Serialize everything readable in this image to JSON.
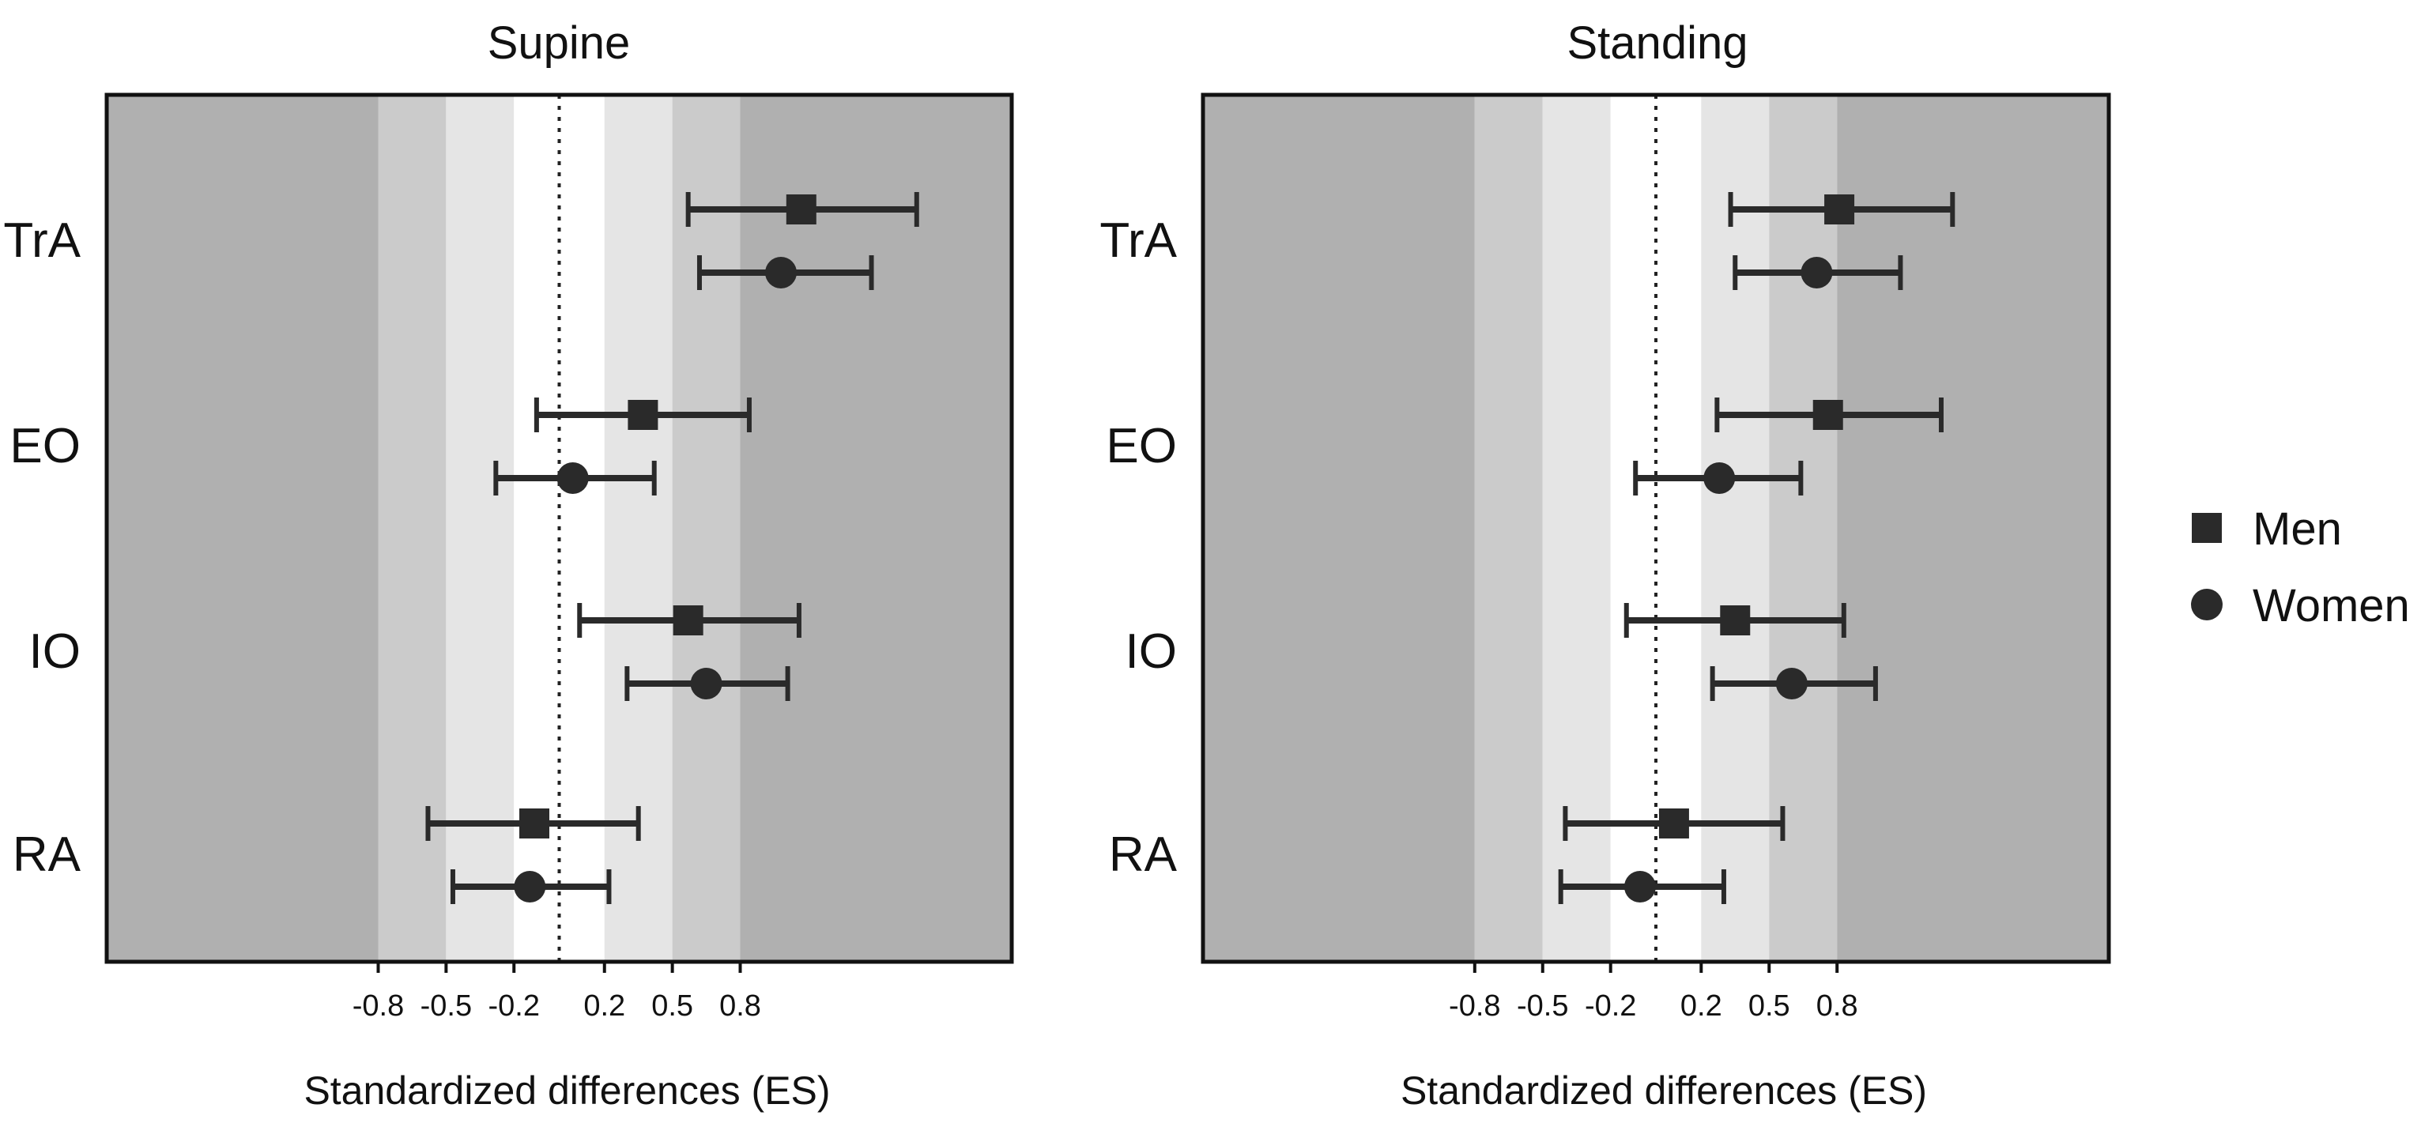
{
  "figure": {
    "legend": {
      "placement": "right"
    }
  },
  "colors": {
    "background": "#ffffff",
    "band_large": "#b0b0b0",
    "band_moderate": "#cbcbcb",
    "band_small": "#e5e5e5",
    "band_trivial": "#ffffff",
    "marker": "#2a2a2a",
    "frame": "#111111"
  },
  "chart_data": [
    {
      "type": "forest",
      "title": "Supine",
      "xlabel": "Standardized differences (ES)",
      "xlim": [
        -2.0,
        2.0
      ],
      "tick_values": [
        -0.8,
        -0.5,
        -0.2,
        0.2,
        0.5,
        0.8
      ],
      "tick_labels": [
        "-0.8",
        "-0.5",
        "-0.2",
        "0.2",
        "0.5",
        "0.8"
      ],
      "reference_line": 0,
      "bands": [
        {
          "from": -2.0,
          "to": -0.8,
          "level": "large"
        },
        {
          "from": -0.8,
          "to": -0.5,
          "level": "moderate"
        },
        {
          "from": -0.5,
          "to": -0.2,
          "level": "small"
        },
        {
          "from": -0.2,
          "to": 0.2,
          "level": "trivial"
        },
        {
          "from": 0.2,
          "to": 0.5,
          "level": "small"
        },
        {
          "from": 0.5,
          "to": 0.8,
          "level": "moderate"
        },
        {
          "from": 0.8,
          "to": 2.0,
          "level": "large"
        }
      ],
      "categories": [
        "TrA",
        "EO",
        "IO",
        "RA"
      ],
      "series": [
        {
          "name": "Men",
          "marker": "square",
          "values": [
            1.07,
            0.37,
            0.57,
            -0.11
          ],
          "lower": [
            0.57,
            -0.1,
            0.09,
            -0.58
          ],
          "upper": [
            1.58,
            0.84,
            1.06,
            0.35
          ]
        },
        {
          "name": "Women",
          "marker": "circle",
          "values": [
            0.98,
            0.06,
            0.65,
            -0.13
          ],
          "lower": [
            0.62,
            -0.28,
            0.3,
            -0.47
          ],
          "upper": [
            1.38,
            0.42,
            1.01,
            0.22
          ]
        }
      ]
    },
    {
      "type": "forest",
      "title": "Standing",
      "xlabel": "Standardized differences (ES)",
      "xlim": [
        -2.0,
        2.0
      ],
      "tick_values": [
        -0.8,
        -0.5,
        -0.2,
        0.2,
        0.5,
        0.8
      ],
      "tick_labels": [
        "-0.8",
        "-0.5",
        "-0.2",
        "0.2",
        "0.5",
        "0.8"
      ],
      "reference_line": 0,
      "bands": [
        {
          "from": -2.0,
          "to": -0.8,
          "level": "large"
        },
        {
          "from": -0.8,
          "to": -0.5,
          "level": "moderate"
        },
        {
          "from": -0.5,
          "to": -0.2,
          "level": "small"
        },
        {
          "from": -0.2,
          "to": 0.2,
          "level": "trivial"
        },
        {
          "from": 0.2,
          "to": 0.5,
          "level": "small"
        },
        {
          "from": 0.5,
          "to": 0.8,
          "level": "moderate"
        },
        {
          "from": 0.8,
          "to": 2.0,
          "level": "large"
        }
      ],
      "categories": [
        "TrA",
        "EO",
        "IO",
        "RA"
      ],
      "series": [
        {
          "name": "Men",
          "marker": "square",
          "values": [
            0.81,
            0.76,
            0.35,
            0.08
          ],
          "lower": [
            0.33,
            0.27,
            -0.13,
            -0.4
          ],
          "upper": [
            1.31,
            1.26,
            0.83,
            0.56
          ]
        },
        {
          "name": "Women",
          "marker": "circle",
          "values": [
            0.71,
            0.28,
            0.6,
            -0.07
          ],
          "lower": [
            0.35,
            -0.09,
            0.25,
            -0.42
          ],
          "upper": [
            1.08,
            0.64,
            0.97,
            0.3
          ]
        }
      ]
    }
  ]
}
